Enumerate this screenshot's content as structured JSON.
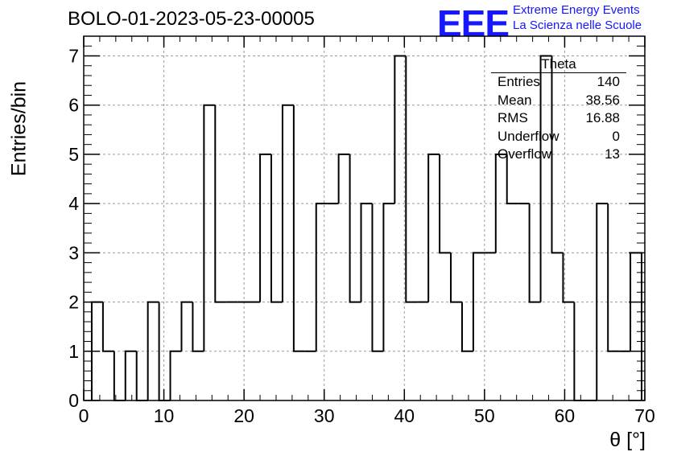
{
  "header": {
    "title": "BOLO-01-2023-05-23-00005"
  },
  "logo": {
    "mark": "EEE",
    "line1": "Extreme Energy Events",
    "line2": "La Scienza nelle Scuole"
  },
  "colors": {
    "logo": "#1616ff",
    "histogram": "#000000",
    "grid": "#9a9a9a"
  },
  "stats": {
    "title": "Theta",
    "rows": [
      {
        "label": "Entries",
        "value": "140"
      },
      {
        "label": "Mean",
        "value": "38.56"
      },
      {
        "label": "RMS",
        "value": "16.88"
      },
      {
        "label": "Underflow",
        "value": "0"
      },
      {
        "label": "Overflow",
        "value": "13"
      }
    ]
  },
  "chart_data": {
    "type": "histogram",
    "title": "BOLO-01-2023-05-23-00005",
    "xlabel": "θ [°]",
    "ylabel": "Entries/bin",
    "xlim": [
      0,
      70
    ],
    "ylim": [
      0,
      7.4
    ],
    "bin_edges_start": 1,
    "bin_width": 1.4,
    "values": [
      2,
      1,
      0,
      1,
      0,
      2,
      0,
      1,
      2,
      1,
      6,
      2,
      2,
      2,
      2,
      5,
      2,
      6,
      1,
      1,
      4,
      4,
      5,
      2,
      4,
      1,
      4,
      7,
      2,
      2,
      5,
      3,
      2,
      1,
      3,
      3,
      5,
      4,
      4,
      2,
      7,
      3,
      2,
      0,
      0,
      4,
      1,
      1,
      3
    ],
    "xticks": [
      0,
      10,
      20,
      30,
      40,
      50,
      60,
      70
    ],
    "yticks": [
      0,
      1,
      2,
      3,
      4,
      5,
      6,
      7
    ],
    "grid": true,
    "stats_box": "top-right"
  }
}
